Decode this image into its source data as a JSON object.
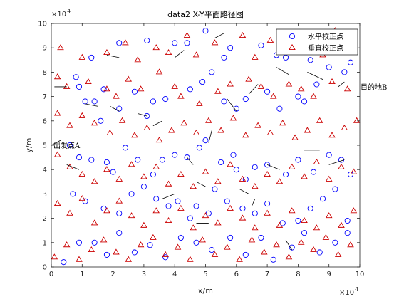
{
  "chart_data": {
    "type": "scatter",
    "title": "data2 X-Y平面路径图",
    "xlabel": "x/m",
    "ylabel": "y/m",
    "x_exponent_label": "×10",
    "y_exponent_label": "×10",
    "exponent": "4",
    "xlim": [
      0,
      100000
    ],
    "ylim": [
      0,
      100000
    ],
    "xticks": [
      "0",
      "1",
      "2",
      "3",
      "4",
      "5",
      "6",
      "7",
      "8",
      "9",
      "10"
    ],
    "yticks": [
      "0",
      "1",
      "2",
      "3",
      "4",
      "5",
      "6",
      "7",
      "8",
      "9",
      "10"
    ],
    "grid": false,
    "legend_position": "top-right",
    "series": [
      {
        "name": "水平校正点",
        "marker": "circle",
        "color": "#0000ff",
        "points": [
          [
            13000,
            86000
          ],
          [
            22000,
            92000
          ],
          [
            31000,
            93000
          ],
          [
            40000,
            92000
          ],
          [
            44000,
            92000
          ],
          [
            50000,
            97000
          ],
          [
            56000,
            86000
          ],
          [
            58000,
            90000
          ],
          [
            68000,
            91000
          ],
          [
            73000,
            87000
          ],
          [
            76000,
            86000
          ],
          [
            80000,
            96000
          ],
          [
            84000,
            85000
          ],
          [
            90000,
            82000
          ],
          [
            94000,
            89000
          ],
          [
            95000,
            80000
          ],
          [
            97000,
            84000
          ],
          [
            8000,
            78000
          ],
          [
            9000,
            74000
          ],
          [
            11000,
            68000
          ],
          [
            14000,
            68000
          ],
          [
            16000,
            60000
          ],
          [
            17000,
            73000
          ],
          [
            22000,
            65000
          ],
          [
            27000,
            72000
          ],
          [
            31000,
            62000
          ],
          [
            33000,
            68000
          ],
          [
            37000,
            69000
          ],
          [
            45000,
            73000
          ],
          [
            49000,
            76000
          ],
          [
            52000,
            80000
          ],
          [
            56000,
            68000
          ],
          [
            60000,
            65000
          ],
          [
            63000,
            69000
          ],
          [
            70000,
            72000
          ],
          [
            74000,
            65000
          ],
          [
            80000,
            70000
          ],
          [
            82000,
            68000
          ],
          [
            86000,
            75000
          ],
          [
            6000,
            50000
          ],
          [
            9000,
            45000
          ],
          [
            13000,
            44000
          ],
          [
            18000,
            43000
          ],
          [
            20000,
            39000
          ],
          [
            24000,
            49000
          ],
          [
            28000,
            44000
          ],
          [
            33000,
            38000
          ],
          [
            36000,
            44000
          ],
          [
            40000,
            46000
          ],
          [
            44000,
            45000
          ],
          [
            48000,
            49000
          ],
          [
            50000,
            52000
          ],
          [
            55000,
            43000
          ],
          [
            59000,
            46000
          ],
          [
            60000,
            40000
          ],
          [
            63000,
            36000
          ],
          [
            66000,
            41000
          ],
          [
            70000,
            42000
          ],
          [
            76000,
            38000
          ],
          [
            80000,
            44000
          ],
          [
            85000,
            39000
          ],
          [
            90000,
            46000
          ],
          [
            94000,
            44000
          ],
          [
            97000,
            38000
          ],
          [
            7000,
            30000
          ],
          [
            11000,
            27000
          ],
          [
            17000,
            24000
          ],
          [
            22000,
            22000
          ],
          [
            26000,
            30000
          ],
          [
            30000,
            33000
          ],
          [
            34000,
            28000
          ],
          [
            38000,
            25000
          ],
          [
            41000,
            27000
          ],
          [
            45000,
            20000
          ],
          [
            47000,
            25000
          ],
          [
            51000,
            22000
          ],
          [
            53000,
            32000
          ],
          [
            57000,
            27000
          ],
          [
            62000,
            24000
          ],
          [
            66000,
            22000
          ],
          [
            70000,
            26000
          ],
          [
            75000,
            18000
          ],
          [
            80000,
            19000
          ],
          [
            84000,
            24000
          ],
          [
            88000,
            28000
          ],
          [
            92000,
            32000
          ],
          [
            96000,
            19000
          ],
          [
            4000,
            2000
          ],
          [
            9000,
            10000
          ],
          [
            14000,
            10000
          ],
          [
            18000,
            5000
          ],
          [
            22000,
            14000
          ],
          [
            27000,
            6000
          ],
          [
            32000,
            9000
          ],
          [
            37000,
            4000
          ],
          [
            42000,
            12000
          ],
          [
            47000,
            10000
          ],
          [
            52000,
            7000
          ],
          [
            58000,
            12000
          ],
          [
            63000,
            5000
          ],
          [
            68000,
            12000
          ],
          [
            72000,
            3000
          ],
          [
            78000,
            8000
          ],
          [
            82000,
            14000
          ],
          [
            87000,
            6000
          ],
          [
            92000,
            10000
          ],
          [
            96000,
            14000
          ]
        ]
      },
      {
        "name": "垂直校正点",
        "marker": "triangle",
        "color": "#cc0000",
        "points": [
          [
            3000,
            90000
          ],
          [
            10000,
            86000
          ],
          [
            18000,
            88000
          ],
          [
            24000,
            92000
          ],
          [
            28000,
            85000
          ],
          [
            34000,
            90000
          ],
          [
            38000,
            88000
          ],
          [
            44000,
            95000
          ],
          [
            47000,
            87000
          ],
          [
            53000,
            92000
          ],
          [
            62000,
            95000
          ],
          [
            66000,
            86000
          ],
          [
            71000,
            93000
          ],
          [
            78000,
            89000
          ],
          [
            84000,
            92000
          ],
          [
            88000,
            87000
          ],
          [
            92000,
            97000
          ],
          [
            98000,
            95000
          ],
          [
            2000,
            78000
          ],
          [
            5000,
            74000
          ],
          [
            12000,
            76000
          ],
          [
            18000,
            73000
          ],
          [
            21000,
            70000
          ],
          [
            25000,
            77000
          ],
          [
            29000,
            73000
          ],
          [
            35000,
            80000
          ],
          [
            40000,
            74000
          ],
          [
            42000,
            70000
          ],
          [
            48000,
            67000
          ],
          [
            54000,
            72000
          ],
          [
            58000,
            75000
          ],
          [
            64000,
            77000
          ],
          [
            68000,
            74000
          ],
          [
            72000,
            70000
          ],
          [
            77000,
            75000
          ],
          [
            81000,
            73000
          ],
          [
            85000,
            70000
          ],
          [
            91000,
            76000
          ],
          [
            96000,
            73000
          ],
          [
            2000,
            63000
          ],
          [
            6000,
            58000
          ],
          [
            10000,
            62000
          ],
          [
            14000,
            59000
          ],
          [
            19000,
            55000
          ],
          [
            23000,
            60000
          ],
          [
            27000,
            54000
          ],
          [
            31000,
            57000
          ],
          [
            35000,
            52000
          ],
          [
            39000,
            56000
          ],
          [
            43000,
            59000
          ],
          [
            47000,
            55000
          ],
          [
            51000,
            60000
          ],
          [
            55000,
            56000
          ],
          [
            59000,
            61000
          ],
          [
            63000,
            54000
          ],
          [
            67000,
            58000
          ],
          [
            71000,
            55000
          ],
          [
            75000,
            59000
          ],
          [
            79000,
            53000
          ],
          [
            83000,
            56000
          ],
          [
            87000,
            60000
          ],
          [
            91000,
            54000
          ],
          [
            95000,
            57000
          ],
          [
            99000,
            60000
          ],
          [
            2000,
            46000
          ],
          [
            6000,
            41000
          ],
          [
            10000,
            38000
          ],
          [
            14000,
            35000
          ],
          [
            18000,
            40000
          ],
          [
            22000,
            36000
          ],
          [
            26000,
            42000
          ],
          [
            30000,
            37000
          ],
          [
            34000,
            41000
          ],
          [
            38000,
            34000
          ],
          [
            42000,
            38000
          ],
          [
            46000,
            33000
          ],
          [
            50000,
            39000
          ],
          [
            54000,
            35000
          ],
          [
            58000,
            42000
          ],
          [
            62000,
            36000
          ],
          [
            66000,
            33000
          ],
          [
            70000,
            38000
          ],
          [
            74000,
            35000
          ],
          [
            78000,
            41000
          ],
          [
            82000,
            37000
          ],
          [
            86000,
            43000
          ],
          [
            90000,
            36000
          ],
          [
            94000,
            41000
          ],
          [
            98000,
            39000
          ],
          [
            2000,
            26000
          ],
          [
            6000,
            22000
          ],
          [
            10000,
            28000
          ],
          [
            14000,
            18000
          ],
          [
            18000,
            23000
          ],
          [
            22000,
            27000
          ],
          [
            26000,
            21000
          ],
          [
            30000,
            17000
          ],
          [
            34000,
            23000
          ],
          [
            38000,
            19000
          ],
          [
            42000,
            24000
          ],
          [
            46000,
            16000
          ],
          [
            50000,
            21000
          ],
          [
            54000,
            18000
          ],
          [
            58000,
            24000
          ],
          [
            62000,
            20000
          ],
          [
            66000,
            16000
          ],
          [
            70000,
            22000
          ],
          [
            74000,
            17000
          ],
          [
            78000,
            23000
          ],
          [
            82000,
            19000
          ],
          [
            86000,
            16000
          ],
          [
            90000,
            21000
          ],
          [
            94000,
            17000
          ],
          [
            98000,
            23000
          ],
          [
            1000,
            4000
          ],
          [
            5000,
            9000
          ],
          [
            9000,
            3000
          ],
          [
            13000,
            7000
          ],
          [
            17000,
            11000
          ],
          [
            21000,
            6000
          ],
          [
            25000,
            3000
          ],
          [
            29000,
            9000
          ],
          [
            33000,
            12000
          ],
          [
            37000,
            5000
          ],
          [
            41000,
            8000
          ],
          [
            45000,
            3000
          ],
          [
            49000,
            11000
          ],
          [
            53000,
            5000
          ],
          [
            57000,
            8000
          ],
          [
            61000,
            3000
          ],
          [
            65000,
            11000
          ],
          [
            69000,
            6000
          ],
          [
            73000,
            9000
          ],
          [
            77000,
            4000
          ],
          [
            81000,
            10000
          ],
          [
            85000,
            7000
          ],
          [
            89000,
            12000
          ],
          [
            93000,
            5000
          ],
          [
            97000,
            9000
          ]
        ]
      }
    ],
    "path_segments": [
      [
        [
          0,
          50000
        ],
        [
          3000,
          52000
        ]
      ],
      [
        [
          5000,
          42000
        ],
        [
          9000,
          40000
        ]
      ],
      [
        [
          11000,
          67000
        ],
        [
          15000,
          66000
        ]
      ],
      [
        [
          18000,
          87000
        ],
        [
          22000,
          86000
        ]
      ],
      [
        [
          19000,
          66000
        ],
        [
          22000,
          64000
        ]
      ],
      [
        [
          28000,
          63000
        ],
        [
          31000,
          62000
        ]
      ],
      [
        [
          33000,
          58000
        ],
        [
          36000,
          60000
        ]
      ],
      [
        [
          44000,
          45000
        ],
        [
          46000,
          42000
        ]
      ],
      [
        [
          47000,
          35000
        ],
        [
          50000,
          33000
        ]
      ],
      [
        [
          52000,
          56000
        ],
        [
          51000,
          51000
        ]
      ],
      [
        [
          57000,
          69000
        ],
        [
          60000,
          64000
        ]
      ],
      [
        [
          61000,
          32000
        ],
        [
          64000,
          30000
        ]
      ],
      [
        [
          66000,
          28000
        ],
        [
          65000,
          25000
        ]
      ],
      [
        [
          70000,
          42000
        ],
        [
          74000,
          40000
        ]
      ],
      [
        [
          82000,
          48000
        ],
        [
          87000,
          48000
        ]
      ],
      [
        [
          90000,
          42000
        ],
        [
          95000,
          44000
        ]
      ],
      [
        [
          93000,
          74000
        ],
        [
          95000,
          76000
        ]
      ],
      [
        [
          83000,
          80000
        ],
        [
          88000,
          77000
        ]
      ],
      [
        [
          64000,
          71000
        ],
        [
          67000,
          75000
        ]
      ],
      [
        [
          53000,
          94000
        ],
        [
          56000,
          96000
        ]
      ],
      [
        [
          36000,
          28000
        ],
        [
          40000,
          30000
        ]
      ],
      [
        [
          47000,
          18000
        ],
        [
          51000,
          18000
        ]
      ],
      [
        [
          76000,
          11000
        ],
        [
          78000,
          7000
        ]
      ],
      [
        [
          1000,
          74000
        ],
        [
          5000,
          74000
        ]
      ],
      [
        [
          73000,
          82000
        ],
        [
          77000,
          79000
        ]
      ],
      [
        [
          40000,
          86000
        ],
        [
          43000,
          89000
        ]
      ]
    ],
    "annotations": [
      {
        "text": "出发点A",
        "x": 0,
        "y": 50000
      },
      {
        "text": "目的地B",
        "x": 100000,
        "y": 74000
      }
    ]
  }
}
